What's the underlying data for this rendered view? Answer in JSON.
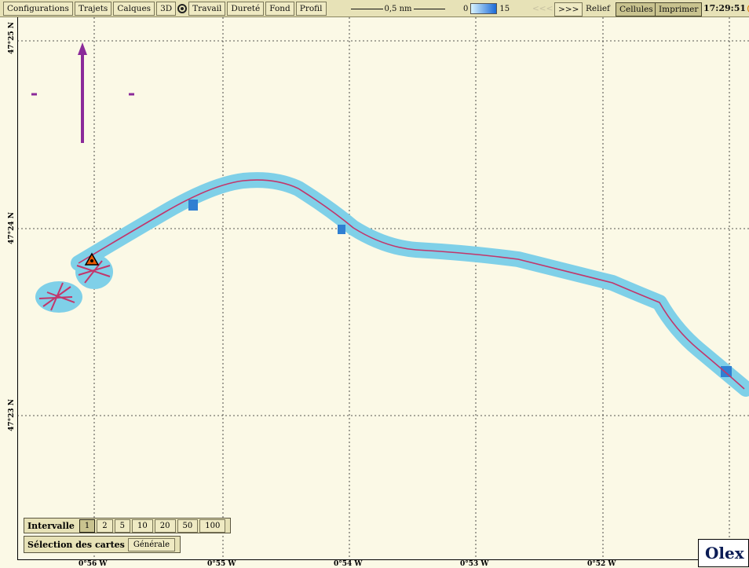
{
  "toolbar": {
    "buttons": [
      "Configurations",
      "Trajets",
      "Calques",
      "3D"
    ],
    "work_label": "Travail",
    "buttons2": [
      "Dureté",
      "Fond",
      "Profil"
    ],
    "scale_label": "0,5 nm",
    "depth_min": "0",
    "depth_max": "15",
    "nav_back": "<<<",
    "nav_forward": ">>>",
    "relief_label": "Relief",
    "cells_label": "Cellules",
    "print_label": "Imprimer",
    "clock": "17:29:51"
  },
  "latitudes": [
    "47°25 N",
    "47°24 N",
    "47°23 N"
  ],
  "longitudes": [
    "0°56 W",
    "0°55 W",
    "0°54 W",
    "0°53 W",
    "0°52 W"
  ],
  "interval": {
    "label": "Intervalle",
    "options": [
      "1",
      "2",
      "5",
      "10",
      "20",
      "50",
      "100"
    ],
    "selected": "1"
  },
  "chart_selection": {
    "label": "Sélection des cartes",
    "value": "Générale"
  },
  "brand": "Olex",
  "colors": {
    "track_fill": "#7fd0e8",
    "track_dark": "#2f7fd2",
    "track_line": "#c2366b",
    "arrow": "#8b2a9a",
    "background": "#fbf9e6",
    "toolbar": "#e7e2b7"
  }
}
